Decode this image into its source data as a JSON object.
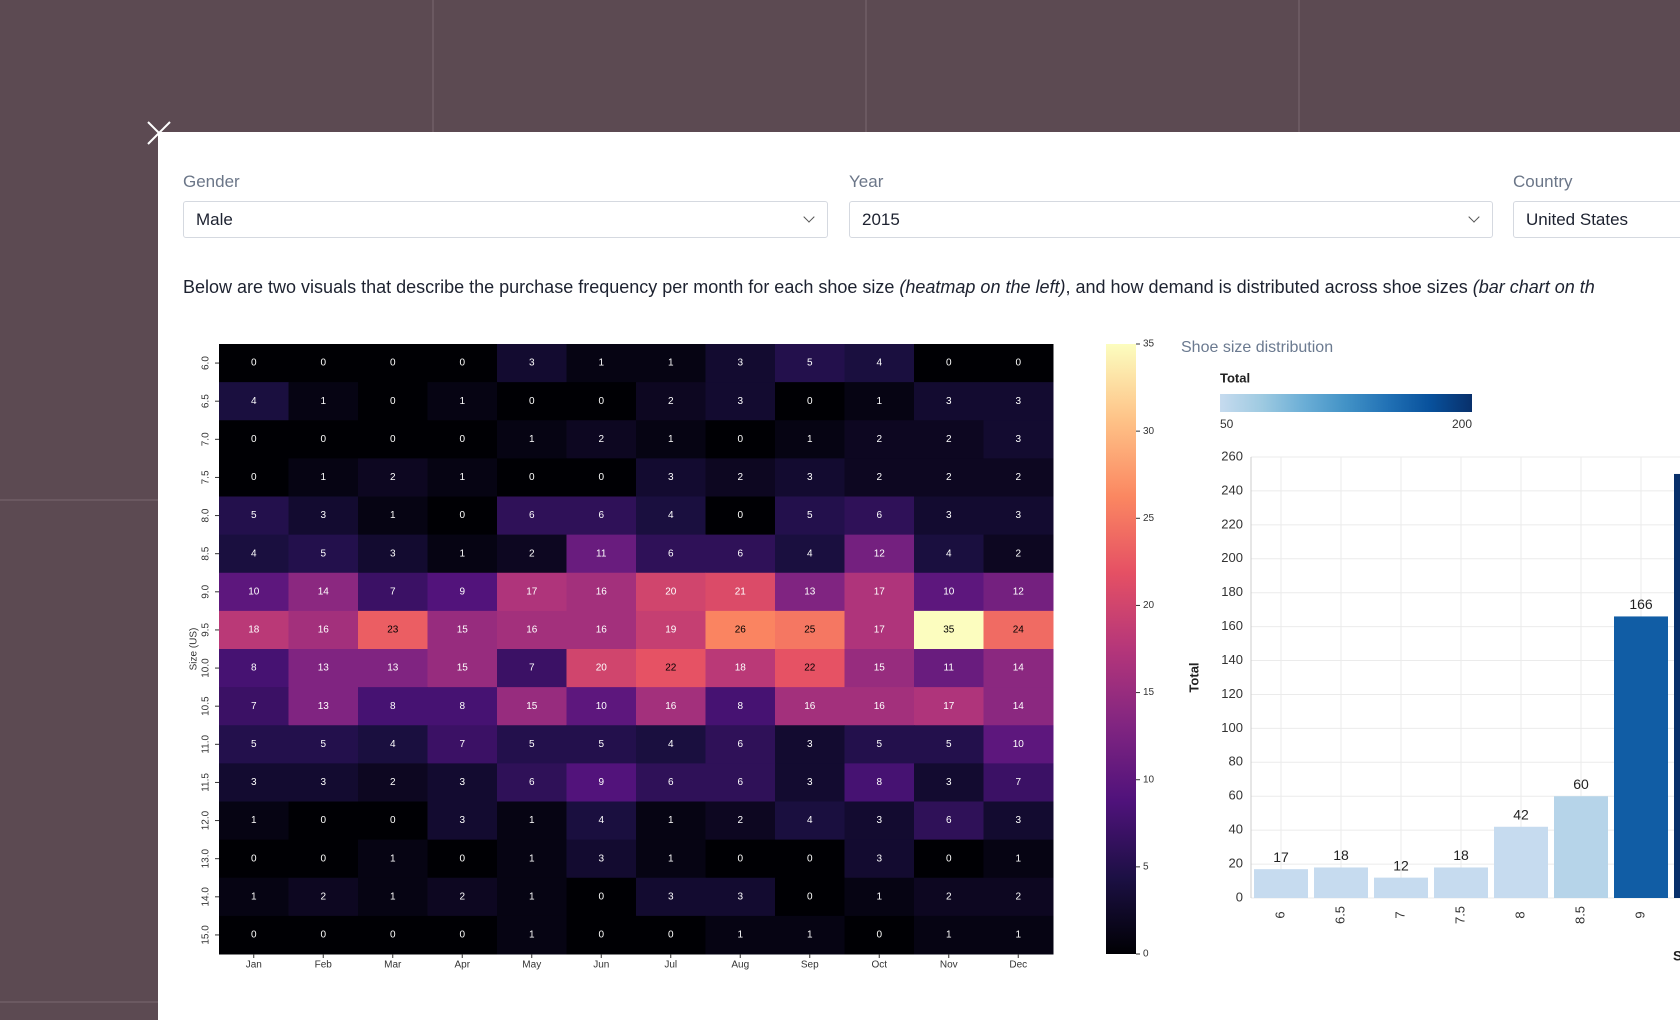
{
  "filters": [
    {
      "label": "Gender",
      "value": "Male"
    },
    {
      "label": "Year",
      "value": "2015"
    },
    {
      "label": "Country",
      "value": "United States"
    }
  ],
  "description": {
    "segments": [
      {
        "text": "Below are two visuals that describe the purchase frequency per month for each shoe size ",
        "italic": false
      },
      {
        "text": "(heatmap on the left)",
        "italic": true
      },
      {
        "text": ", and how demand is distributed across shoe sizes ",
        "italic": false
      },
      {
        "text": "(bar chart on th",
        "italic": true
      }
    ]
  },
  "chart_data": [
    {
      "type": "heatmap",
      "y_label": "Size (US)",
      "categories": [
        "Jan",
        "Feb",
        "Mar",
        "Apr",
        "May",
        "Jun",
        "Jul",
        "Aug",
        "Sep",
        "Oct",
        "Nov",
        "Dec"
      ],
      "rows": [
        "6.0",
        "6.5",
        "7.0",
        "7.5",
        "8.0",
        "8.5",
        "9.0",
        "9.5",
        "10.0",
        "10.5",
        "11.0",
        "11.5",
        "12.0",
        "13.0",
        "14.0",
        "15.0"
      ],
      "values": [
        [
          0,
          0,
          0,
          0,
          3,
          1,
          1,
          3,
          5,
          4,
          0,
          0
        ],
        [
          4,
          1,
          0,
          1,
          0,
          0,
          2,
          3,
          0,
          1,
          3,
          3
        ],
        [
          0,
          0,
          0,
          0,
          1,
          2,
          1,
          0,
          1,
          2,
          2,
          3
        ],
        [
          0,
          1,
          2,
          1,
          0,
          0,
          3,
          2,
          3,
          2,
          2,
          2
        ],
        [
          5,
          3,
          1,
          0,
          6,
          6,
          4,
          0,
          5,
          6,
          3,
          3
        ],
        [
          4,
          5,
          3,
          1,
          2,
          11,
          6,
          6,
          4,
          12,
          4,
          2
        ],
        [
          10,
          14,
          7,
          9,
          17,
          16,
          20,
          21,
          13,
          17,
          10,
          12
        ],
        [
          18,
          16,
          23,
          15,
          16,
          16,
          19,
          26,
          25,
          17,
          35,
          24
        ],
        [
          8,
          13,
          13,
          15,
          7,
          20,
          22,
          18,
          22,
          15,
          11,
          14
        ],
        [
          7,
          13,
          8,
          8,
          15,
          10,
          16,
          8,
          16,
          16,
          17,
          14
        ],
        [
          5,
          5,
          4,
          7,
          5,
          5,
          4,
          6,
          3,
          5,
          5,
          10
        ],
        [
          3,
          3,
          2,
          3,
          6,
          9,
          6,
          6,
          3,
          8,
          3,
          7
        ],
        [
          1,
          0,
          0,
          3,
          1,
          4,
          1,
          2,
          4,
          3,
          6,
          3
        ],
        [
          0,
          0,
          1,
          0,
          1,
          3,
          1,
          0,
          0,
          3,
          0,
          1
        ],
        [
          1,
          2,
          1,
          2,
          1,
          0,
          3,
          3,
          0,
          1,
          2,
          2
        ],
        [
          0,
          0,
          0,
          0,
          1,
          0,
          0,
          1,
          1,
          0,
          1,
          1
        ]
      ],
      "colormap": [
        "#000004",
        "#1c1044",
        "#4f127b",
        "#812581",
        "#b5367a",
        "#e55064",
        "#fb8761",
        "#fec287",
        "#fcfdbf"
      ],
      "clim": [
        0,
        35
      ],
      "cticks": [
        0,
        5,
        10,
        15,
        20,
        25,
        30,
        35
      ]
    },
    {
      "type": "bar",
      "title": "Shoe size distribution",
      "y_label": "Total",
      "x_label": "S",
      "categories": [
        "6",
        "6.5",
        "7",
        "7.5",
        "8",
        "8.5",
        "9",
        null
      ],
      "values": [
        17,
        18,
        12,
        18,
        42,
        60,
        166,
        250
      ],
      "legend": {
        "title": "Total",
        "range": [
          50,
          200
        ]
      },
      "colorscale": [
        "#c6dbef",
        "#9ecae1",
        "#6baed6",
        "#4292c6",
        "#2171b5",
        "#08519c",
        "#08306b"
      ],
      "ylim": [
        0,
        260
      ],
      "yticks": [
        0,
        20,
        40,
        60,
        80,
        100,
        120,
        140,
        160,
        180,
        200,
        220,
        240,
        260
      ],
      "grid": true
    }
  ]
}
